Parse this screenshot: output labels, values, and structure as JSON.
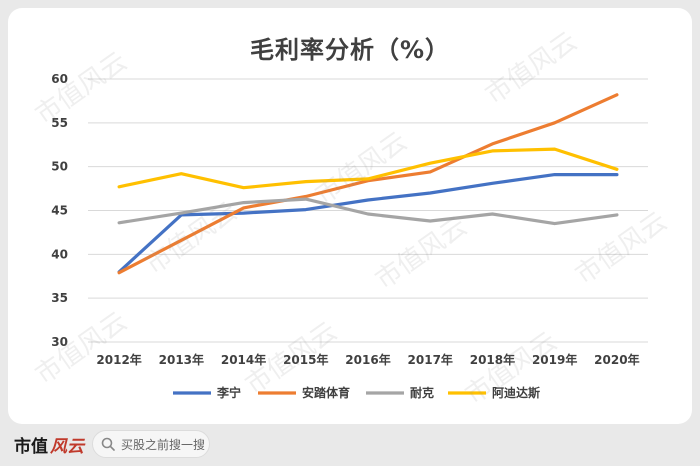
{
  "title": "毛利率分析（%）",
  "watermark": "市值风云",
  "footer": {
    "brand_main": "市值",
    "brand_script": "风云",
    "search_text": "买股之前搜一搜"
  },
  "chart_data": {
    "type": "line",
    "title": "毛利率分析（%）",
    "xlabel": "",
    "ylabel": "",
    "x": [
      "2012年",
      "2013年",
      "2014年",
      "2015年",
      "2016年",
      "2017年",
      "2018年",
      "2019年",
      "2020年"
    ],
    "ylim": [
      30,
      60
    ],
    "yticks": [
      30,
      35,
      40,
      45,
      50,
      55,
      60
    ],
    "grid": true,
    "legend_position": "bottom",
    "series": [
      {
        "name": "李宁",
        "color": "#4472c4",
        "values": [
          38.0,
          44.5,
          44.7,
          45.1,
          46.2,
          47.0,
          48.1,
          49.1,
          49.1
        ]
      },
      {
        "name": "安踏体育",
        "color": "#ed7d31",
        "values": [
          37.9,
          41.6,
          45.3,
          46.6,
          48.4,
          49.4,
          52.6,
          55.0,
          58.2
        ]
      },
      {
        "name": "耐克",
        "color": "#a5a5a5",
        "values": [
          43.6,
          44.7,
          45.9,
          46.3,
          44.6,
          43.8,
          44.6,
          43.5,
          44.5
        ]
      },
      {
        "name": "阿迪达斯",
        "color": "#ffc000",
        "values": [
          47.7,
          49.2,
          47.6,
          48.3,
          48.6,
          50.4,
          51.8,
          52.0,
          49.7
        ]
      }
    ]
  }
}
